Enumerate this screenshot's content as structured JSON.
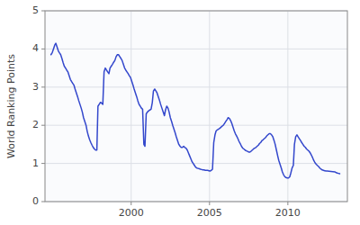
{
  "chart_data": {
    "type": "line",
    "ylabel": "World Ranking Points",
    "color": "#3347cc",
    "grid": true,
    "xlim": [
      1994.5,
      2013.8
    ],
    "ylim": [
      0,
      5
    ],
    "xticks": [
      2000,
      2005,
      2010
    ],
    "yticks": [
      0,
      1,
      2,
      3,
      4,
      5
    ],
    "x": [
      1994.88,
      1994.96,
      1995.04,
      1995.12,
      1995.19,
      1995.27,
      1995.35,
      1995.42,
      1995.5,
      1995.58,
      1995.65,
      1995.73,
      1995.81,
      1995.88,
      1995.96,
      1996.04,
      1996.12,
      1996.19,
      1996.27,
      1996.35,
      1996.42,
      1996.5,
      1996.58,
      1996.65,
      1996.73,
      1996.81,
      1996.88,
      1996.96,
      1997.04,
      1997.12,
      1997.19,
      1997.27,
      1997.35,
      1997.42,
      1997.5,
      1997.58,
      1997.65,
      1997.73,
      1997.81,
      1997.88,
      1997.96,
      1998.04,
      1998.12,
      1998.19,
      1998.27,
      1998.35,
      1998.42,
      1998.5,
      1998.58,
      1998.65,
      1998.73,
      1998.81,
      1998.88,
      1998.96,
      1999.04,
      1999.12,
      1999.19,
      1999.27,
      1999.35,
      1999.42,
      1999.5,
      1999.58,
      1999.65,
      1999.73,
      1999.81,
      1999.88,
      1999.96,
      2000.04,
      2000.12,
      2000.19,
      2000.27,
      2000.35,
      2000.42,
      2000.5,
      2000.58,
      2000.65,
      2000.73,
      2000.81,
      2000.88,
      2000.96,
      2001.04,
      2001.12,
      2001.19,
      2001.27,
      2001.35,
      2001.42,
      2001.5,
      2001.58,
      2001.65,
      2001.73,
      2001.81,
      2001.88,
      2001.96,
      2002.04,
      2002.12,
      2002.19,
      2002.27,
      2002.35,
      2002.42,
      2002.5,
      2002.58,
      2002.65,
      2002.73,
      2002.81,
      2002.88,
      2002.96,
      2003.04,
      2003.12,
      2003.19,
      2003.27,
      2003.35,
      2003.42,
      2003.5,
      2003.58,
      2003.65,
      2003.73,
      2003.81,
      2003.88,
      2003.96,
      2004.04,
      2004.12,
      2004.19,
      2004.27,
      2004.35,
      2004.42,
      2004.5,
      2004.58,
      2004.65,
      2004.73,
      2004.81,
      2004.88,
      2004.96,
      2005.04,
      2005.12,
      2005.19,
      2005.27,
      2005.35,
      2005.42,
      2005.5,
      2005.58,
      2005.65,
      2005.73,
      2005.81,
      2005.88,
      2005.96,
      2006.04,
      2006.12,
      2006.19,
      2006.27,
      2006.35,
      2006.42,
      2006.5,
      2006.58,
      2006.65,
      2006.73,
      2006.81,
      2006.88,
      2006.96,
      2007.04,
      2007.12,
      2007.19,
      2007.27,
      2007.35,
      2007.42,
      2007.5,
      2007.58,
      2007.65,
      2007.73,
      2007.81,
      2007.88,
      2007.96,
      2008.04,
      2008.12,
      2008.19,
      2008.27,
      2008.35,
      2008.42,
      2008.5,
      2008.58,
      2008.65,
      2008.73,
      2008.81,
      2008.88,
      2008.96,
      2009.04,
      2009.12,
      2009.19,
      2009.27,
      2009.35,
      2009.42,
      2009.5,
      2009.58,
      2009.65,
      2009.73,
      2009.81,
      2009.88,
      2009.96,
      2010.04,
      2010.12,
      2010.19,
      2010.27,
      2010.35,
      2010.42,
      2010.5,
      2010.58,
      2010.65,
      2010.73,
      2010.81,
      2010.88,
      2010.96,
      2011.04,
      2011.12,
      2011.19,
      2011.27,
      2011.35,
      2011.42,
      2011.5,
      2011.58,
      2011.65,
      2011.73,
      2011.81,
      2011.88,
      2011.96,
      2012.04,
      2012.12,
      2012.19,
      2012.27,
      2012.35,
      2012.42,
      2012.5,
      2013.0,
      2013.08,
      2013.15,
      2013.23,
      2013.31
    ],
    "values": [
      3.85,
      3.9,
      4.0,
      4.1,
      4.15,
      4.05,
      3.95,
      3.9,
      3.85,
      3.75,
      3.65,
      3.55,
      3.5,
      3.45,
      3.4,
      3.3,
      3.2,
      3.15,
      3.1,
      3.05,
      2.95,
      2.85,
      2.75,
      2.65,
      2.55,
      2.45,
      2.35,
      2.2,
      2.1,
      2.0,
      1.85,
      1.72,
      1.62,
      1.55,
      1.48,
      1.42,
      1.38,
      1.35,
      1.35,
      2.5,
      2.55,
      2.6,
      2.58,
      2.55,
      3.4,
      3.5,
      3.45,
      3.4,
      3.35,
      3.5,
      3.55,
      3.6,
      3.65,
      3.7,
      3.8,
      3.85,
      3.85,
      3.8,
      3.75,
      3.7,
      3.6,
      3.5,
      3.45,
      3.4,
      3.35,
      3.3,
      3.25,
      3.15,
      3.05,
      2.95,
      2.85,
      2.75,
      2.65,
      2.55,
      2.5,
      2.45,
      2.42,
      1.5,
      1.45,
      2.3,
      2.35,
      2.38,
      2.4,
      2.42,
      2.6,
      2.9,
      2.95,
      2.9,
      2.85,
      2.75,
      2.65,
      2.55,
      2.45,
      2.35,
      2.25,
      2.4,
      2.5,
      2.45,
      2.35,
      2.2,
      2.1,
      2.0,
      1.9,
      1.8,
      1.7,
      1.6,
      1.5,
      1.45,
      1.42,
      1.42,
      1.45,
      1.42,
      1.4,
      1.35,
      1.28,
      1.2,
      1.12,
      1.05,
      1.0,
      0.95,
      0.9,
      0.88,
      0.87,
      0.86,
      0.85,
      0.84,
      0.83,
      0.83,
      0.82,
      0.82,
      0.82,
      0.81,
      0.8,
      0.82,
      0.85,
      1.55,
      1.75,
      1.85,
      1.88,
      1.9,
      1.92,
      1.95,
      1.98,
      2.0,
      2.05,
      2.1,
      2.15,
      2.2,
      2.18,
      2.12,
      2.05,
      1.95,
      1.85,
      1.78,
      1.72,
      1.65,
      1.58,
      1.52,
      1.45,
      1.4,
      1.38,
      1.35,
      1.33,
      1.32,
      1.3,
      1.3,
      1.32,
      1.35,
      1.38,
      1.4,
      1.42,
      1.45,
      1.48,
      1.52,
      1.55,
      1.6,
      1.62,
      1.65,
      1.68,
      1.72,
      1.75,
      1.78,
      1.78,
      1.75,
      1.7,
      1.6,
      1.5,
      1.35,
      1.2,
      1.08,
      0.98,
      0.88,
      0.78,
      0.7,
      0.65,
      0.63,
      0.62,
      0.62,
      0.65,
      0.75,
      0.88,
      0.95,
      1.5,
      1.7,
      1.75,
      1.7,
      1.65,
      1.6,
      1.55,
      1.5,
      1.45,
      1.42,
      1.38,
      1.35,
      1.32,
      1.28,
      1.22,
      1.15,
      1.08,
      1.02,
      0.98,
      0.95,
      0.92,
      0.88,
      0.85,
      0.83,
      0.82,
      0.81,
      0.8,
      0.8,
      0.78,
      0.76,
      0.75,
      0.74,
      0.73
    ]
  }
}
